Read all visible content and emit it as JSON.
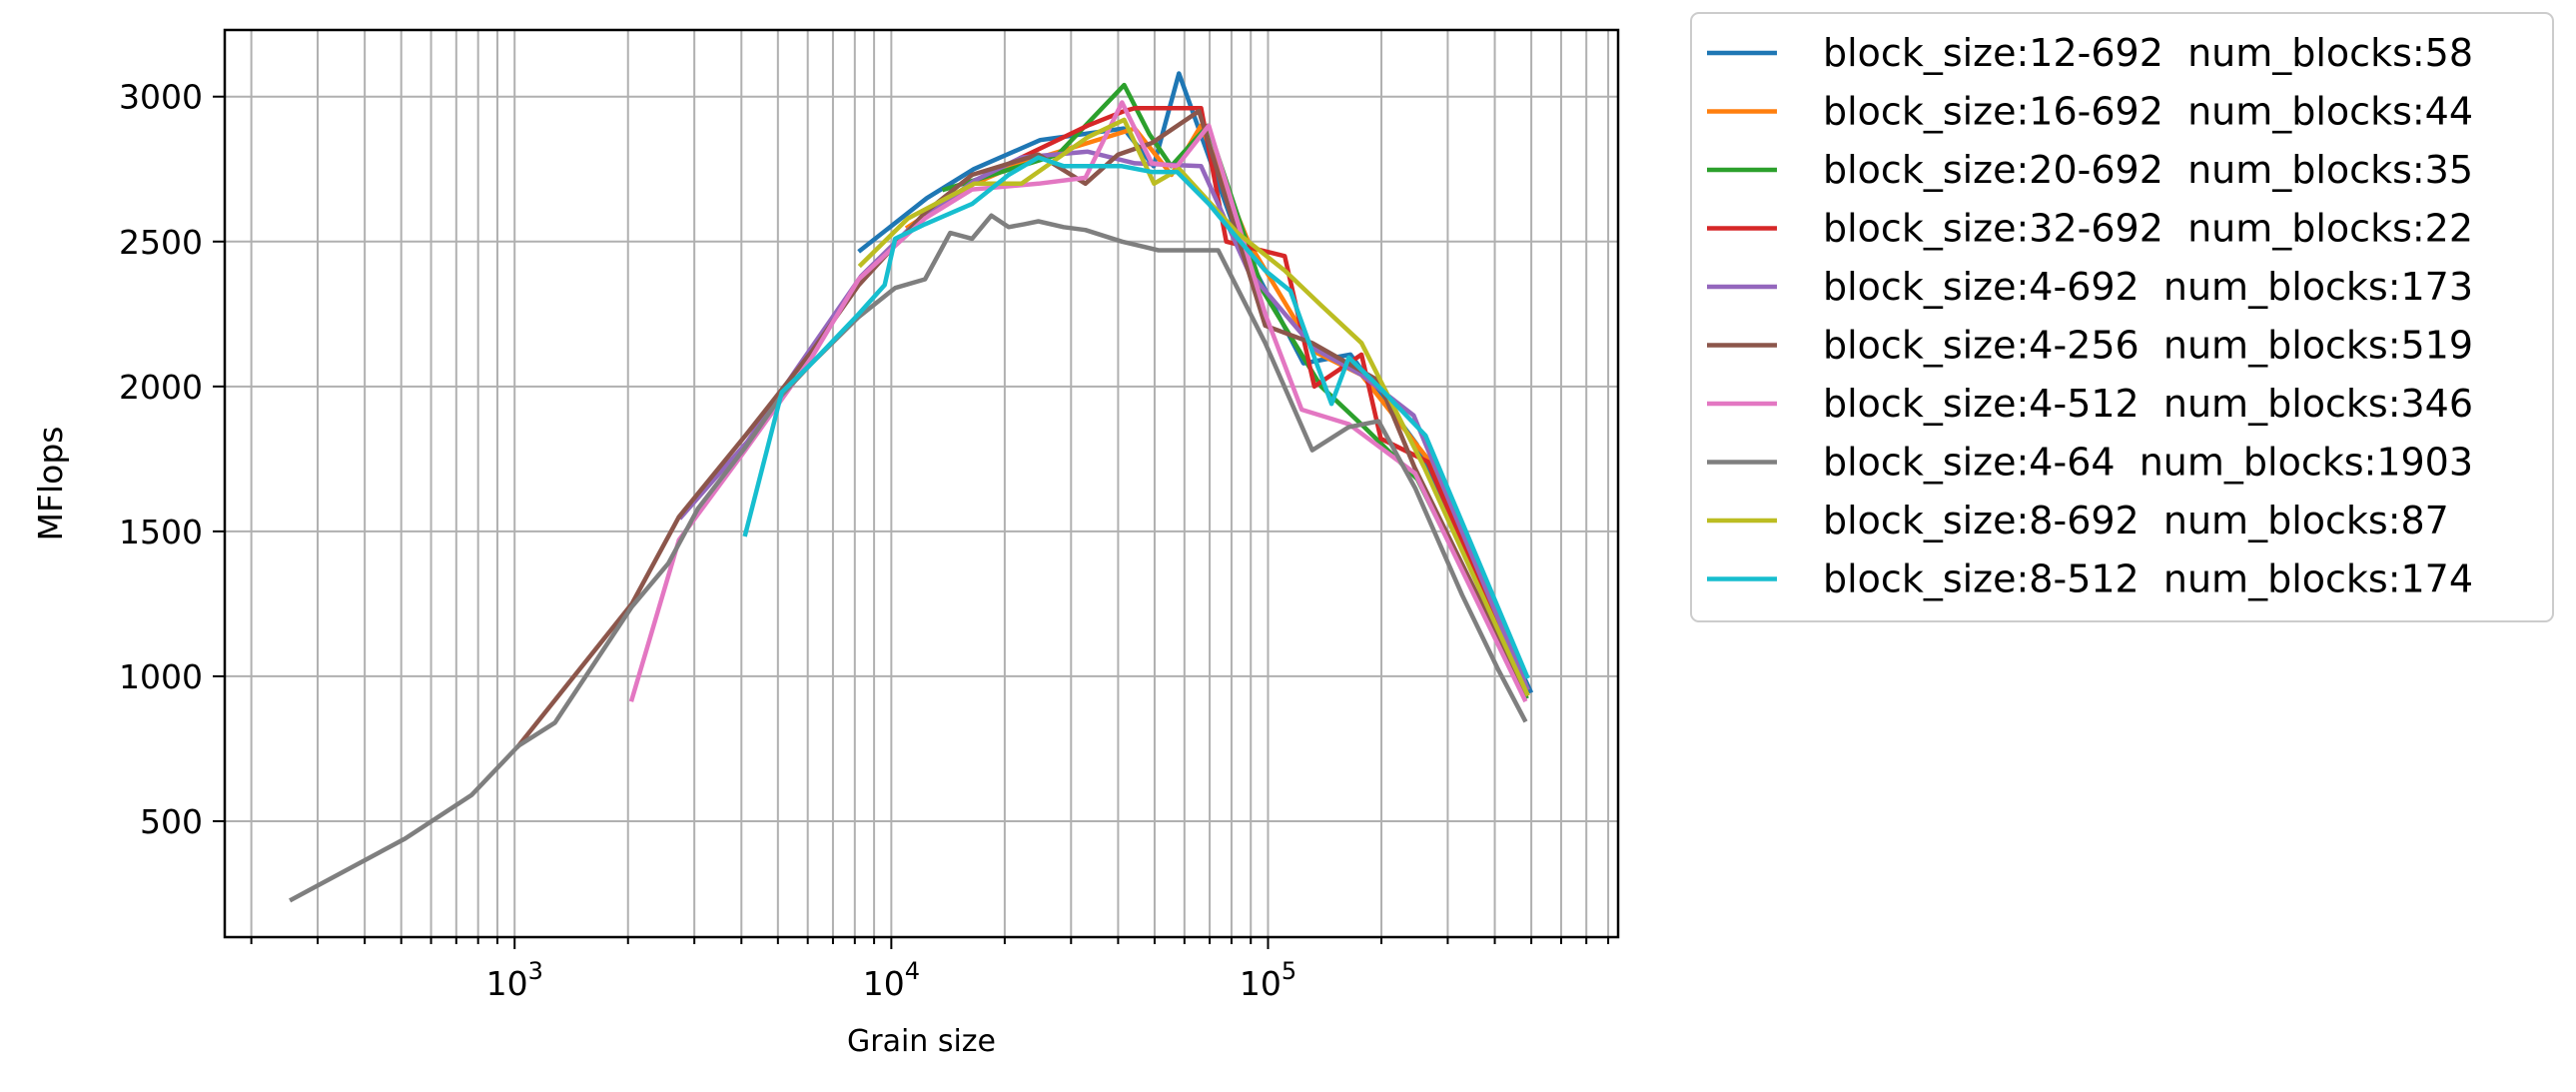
{
  "chart_data": {
    "type": "line",
    "title": "",
    "xlabel": "Grain size",
    "ylabel": "MFlops",
    "xscale": "log",
    "xlim": [
      170,
      850000
    ],
    "ylim": [
      100,
      3230
    ],
    "xticks": [
      {
        "value": 1000,
        "base": "10",
        "exp": "3"
      },
      {
        "value": 10000,
        "base": "10",
        "exp": "4"
      },
      {
        "value": 100000,
        "base": "10",
        "exp": "5"
      }
    ],
    "yticks": [
      500,
      1000,
      1500,
      2000,
      2500,
      3000
    ],
    "grid": "both (major and minor on x)",
    "legend": "outside right, upper",
    "series": [
      {
        "name": "block_size:12-692  num_blocks:58",
        "color": "#1f77b4",
        "x": [
          8280,
          12420,
          16560,
          24840,
          41400,
          49700,
          58000,
          82800,
          124200,
          165600,
          248400,
          497000
        ],
        "y": [
          2470,
          2650,
          2750,
          2850,
          2890,
          2760,
          3080,
          2520,
          2080,
          2110,
          1800,
          950
        ]
      },
      {
        "name": "block_size:16-692  num_blocks:44",
        "color": "#ff7f0e",
        "x": [
          11072,
          16600,
          22100,
          33200,
          44300,
          55400,
          66400,
          88600,
          132800,
          177100,
          265700,
          487000
        ],
        "y": [
          2550,
          2700,
          2770,
          2840,
          2890,
          2730,
          2900,
          2500,
          2120,
          2040,
          1750,
          960
        ]
      },
      {
        "name": "block_size:20-692  num_blocks:35",
        "color": "#2ca02c",
        "x": [
          13840,
          20760,
          27680,
          41520,
          48440,
          55360,
          69200,
          96880,
          138400,
          180000,
          249100,
          484000
        ],
        "y": [
          2680,
          2750,
          2800,
          3040,
          2870,
          2760,
          2900,
          2330,
          2000,
          1860,
          1680,
          930
        ]
      },
      {
        "name": "block_size:32-692  num_blocks:22",
        "color": "#d62728",
        "x": [
          22144,
          33216,
          41500,
          44288,
          55360,
          66432,
          77500,
          110720,
          132800,
          177100,
          199300,
          265700,
          487000
        ],
        "y": [
          2790,
          2900,
          2950,
          2960,
          2960,
          2960,
          2500,
          2450,
          2000,
          2110,
          1820,
          1740,
          940
        ]
      },
      {
        "name": "block_size:4-692  num_blocks:173",
        "color": "#9467bd",
        "x": [
          2768,
          4152,
          5536,
          8304,
          11072,
          16608,
          22144,
          33216,
          44288,
          66432,
          88576,
          132864,
          177152,
          243600,
          487000
        ],
        "y": [
          1550,
          1810,
          2050,
          2380,
          2540,
          2710,
          2790,
          2810,
          2770,
          2760,
          2400,
          2130,
          2040,
          1900,
          960
        ]
      },
      {
        "name": "block_size:4-256  num_blocks:519",
        "color": "#8c564b",
        "x": [
          1024,
          2048,
          2730,
          4096,
          6144,
          8192,
          12288,
          16384,
          24576,
          32768,
          40000,
          49152,
          65536,
          98304,
          131072,
          196608,
          245000,
          480000
        ],
        "y": [
          760,
          1250,
          1550,
          1830,
          2120,
          2350,
          2600,
          2730,
          2800,
          2700,
          2800,
          2840,
          2950,
          2210,
          2150,
          2020,
          1720,
          950
        ]
      },
      {
        "name": "block_size:4-512  num_blocks:346",
        "color": "#e377c2",
        "x": [
          2048,
          2730,
          4096,
          6144,
          8192,
          12288,
          16384,
          24576,
          32768,
          40960,
          49152,
          57344,
          69632,
          98304,
          122880,
          163840,
          245760,
          480000
        ],
        "y": [
          920,
          1470,
          1780,
          2100,
          2370,
          2580,
          2680,
          2700,
          2720,
          2980,
          2770,
          2760,
          2900,
          2250,
          1920,
          1870,
          1700,
          920
        ]
      },
      {
        "name": "block_size:4-64  num_blocks:1903",
        "color": "#7f7f7f",
        "x": [
          256,
          512,
          768,
          1024,
          1280,
          2048,
          2560,
          3072,
          4096,
          5120,
          6144,
          8192,
          10240,
          12288,
          14336,
          16384,
          18432,
          20480,
          22528,
          24576,
          28672,
          32768,
          40960,
          51200,
          61440,
          73728,
          98304,
          131072,
          163840,
          196608,
          245760,
          327680,
          409600,
          480000
        ],
        "y": [
          230,
          440,
          590,
          760,
          840,
          1240,
          1390,
          1580,
          1790,
          1970,
          2080,
          2240,
          2340,
          2370,
          2530,
          2510,
          2590,
          2550,
          2560,
          2570,
          2550,
          2540,
          2500,
          2470,
          2470,
          2470,
          2150,
          1780,
          1860,
          1880,
          1650,
          1280,
          1020,
          850
        ]
      },
      {
        "name": "block_size:8-692  num_blocks:87",
        "color": "#bcbd22",
        "x": [
          8304,
          11072,
          16608,
          22144,
          33216,
          41520,
          49824,
          58128,
          83040,
          110720,
          138400,
          177152,
          260000,
          487000
        ],
        "y": [
          2420,
          2580,
          2700,
          2700,
          2860,
          2920,
          2700,
          2750,
          2530,
          2400,
          2280,
          2150,
          1720,
          940
        ]
      },
      {
        "name": "block_size:8-512  num_blocks:174",
        "color": "#17becf",
        "x": [
          4096,
          5120,
          6144,
          8192,
          9600,
          10240,
          12288,
          16384,
          20480,
          24576,
          28672,
          32768,
          40960,
          49152,
          57344,
          69632,
          81920,
          98304,
          114688,
          131072,
          147456,
          163840,
          196608,
          262144,
          487000
        ],
        "y": [
          1490,
          1980,
          2080,
          2250,
          2350,
          2510,
          2560,
          2630,
          2730,
          2790,
          2760,
          2760,
          2760,
          2740,
          2740,
          2630,
          2520,
          2400,
          2330,
          2120,
          1940,
          2100,
          2000,
          1830,
          1000
        ]
      }
    ]
  }
}
